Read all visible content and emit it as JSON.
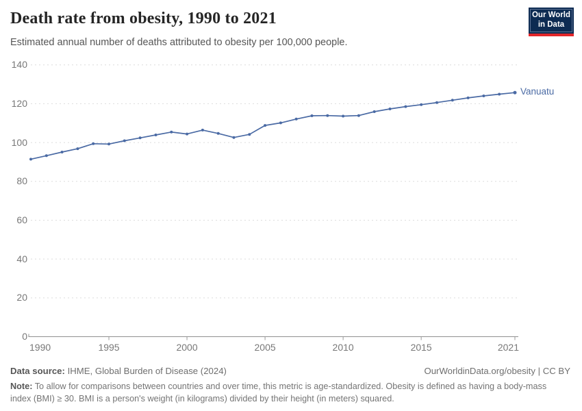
{
  "header": {
    "title": "Death rate from obesity, 1990 to 2021",
    "subtitle": "Estimated annual number of deaths attributed to obesity per 100,000 people.",
    "logo": {
      "line1": "Our World",
      "line2": "in Data",
      "bg_color": "#0d2b52",
      "accent_color": "#e2262a"
    }
  },
  "chart_data": {
    "type": "line",
    "title": "Death rate from obesity, 1990 to 2021",
    "xlabel": "",
    "ylabel": "",
    "xlim": [
      1990,
      2021
    ],
    "ylim": [
      0,
      140
    ],
    "x_ticks": [
      1990,
      1995,
      2000,
      2005,
      2010,
      2015,
      2021
    ],
    "y_ticks": [
      0,
      20,
      40,
      60,
      80,
      100,
      120,
      140
    ],
    "grid": "horizontal-dashed",
    "legend_position": "end-of-line-label",
    "series": [
      {
        "name": "Vanuatu",
        "color": "#4a6aa4",
        "x": [
          1990,
          1991,
          1992,
          1993,
          1994,
          1995,
          1996,
          1997,
          1998,
          1999,
          2000,
          2001,
          2002,
          2003,
          2004,
          2005,
          2006,
          2007,
          2008,
          2009,
          2010,
          2011,
          2012,
          2013,
          2014,
          2015,
          2016,
          2017,
          2018,
          2019,
          2020,
          2021
        ],
        "values": [
          91.4,
          93.2,
          95.1,
          96.8,
          99.4,
          99.2,
          100.9,
          102.4,
          103.9,
          105.4,
          104.4,
          106.4,
          104.7,
          102.6,
          104.2,
          108.8,
          110.1,
          112.1,
          113.8,
          113.9,
          113.6,
          113.9,
          115.9,
          117.3,
          118.5,
          119.5,
          120.6,
          121.8,
          123.0,
          124.0,
          124.9,
          125.7
        ]
      }
    ]
  },
  "footer": {
    "source_label": "Data source:",
    "source_text": "IHME, Global Burden of Disease (2024)",
    "link_text": "OurWorldinData.org/obesity | CC BY",
    "note_label": "Note:",
    "note_text": "To allow for comparisons between countries and over time, this metric is age-standardized. Obesity is defined as having a body-mass index (BMI) ≥ 30. BMI is a person's weight (in kilograms) divided by their height (in meters) squared."
  }
}
